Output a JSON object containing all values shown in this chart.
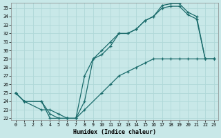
{
  "xlabel": "Humidex (Indice chaleur)",
  "bg_color": "#c8e8e8",
  "grid_color": "#b0d8d8",
  "line_color": "#1a6b6b",
  "xlim_min": -0.5,
  "xlim_max": 23.5,
  "ylim_min": 21.8,
  "ylim_max": 35.6,
  "xticks": [
    0,
    1,
    2,
    3,
    4,
    5,
    6,
    7,
    8,
    9,
    10,
    11,
    12,
    13,
    14,
    15,
    16,
    17,
    18,
    19,
    20,
    21,
    22,
    23
  ],
  "yticks": [
    22,
    23,
    24,
    25,
    26,
    27,
    28,
    29,
    30,
    31,
    32,
    33,
    34,
    35
  ],
  "curve1_x": [
    0,
    1,
    3,
    4,
    5,
    6,
    7,
    8,
    9,
    10,
    11,
    12,
    13,
    14,
    15,
    16,
    17,
    18,
    19,
    20,
    21,
    22,
    23
  ],
  "curve1_y": [
    25,
    24,
    24,
    22,
    22,
    22,
    22,
    27,
    29,
    30,
    31,
    32,
    32,
    32.5,
    33.5,
    34,
    35.3,
    35.5,
    35.5,
    34.5,
    34,
    29,
    29
  ],
  "curve2_x": [
    0,
    1,
    3,
    4,
    5,
    6,
    7,
    8,
    9,
    10,
    11,
    12,
    13,
    14,
    15,
    16,
    17,
    18,
    19,
    20,
    21,
    22,
    23
  ],
  "curve2_y": [
    25,
    24,
    24,
    22.5,
    22,
    22,
    22,
    24,
    29,
    29.5,
    30.5,
    32,
    32,
    32.5,
    33.5,
    34,
    35,
    35.2,
    35.2,
    34.2,
    33.7,
    29,
    29
  ],
  "curve3_x": [
    0,
    1,
    3,
    4,
    5,
    6,
    7,
    8,
    10,
    11,
    12,
    13,
    14,
    15,
    16,
    17,
    18,
    19,
    20,
    21,
    22,
    23
  ],
  "curve3_y": [
    25,
    24,
    23,
    23,
    22.5,
    22,
    22,
    23,
    25,
    26,
    27,
    27.5,
    28,
    28.5,
    29,
    29,
    29,
    29,
    29,
    29,
    29,
    29
  ]
}
